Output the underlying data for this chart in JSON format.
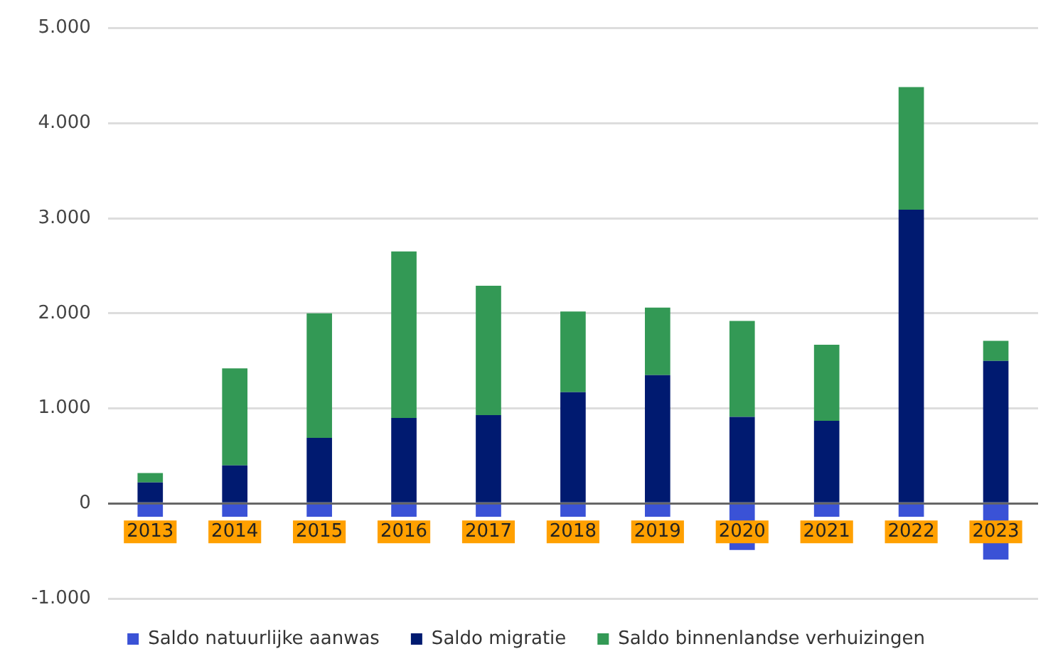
{
  "chart_data": {
    "type": "bar",
    "stacked": true,
    "categories": [
      "2013",
      "2014",
      "2015",
      "2016",
      "2017",
      "2018",
      "2019",
      "2020",
      "2021",
      "2022",
      "2023"
    ],
    "series": [
      {
        "name": "Saldo natuurlijke aanwas",
        "color": "#3a52d6",
        "values": [
          -140,
          -140,
          -140,
          -140,
          -140,
          -140,
          -140,
          -490,
          -140,
          -140,
          -590
        ]
      },
      {
        "name": "Saldo migratie",
        "color": "#001a70",
        "values": [
          220,
          400,
          690,
          900,
          930,
          1170,
          1350,
          910,
          870,
          3090,
          1500
        ]
      },
      {
        "name": "Saldo binnenlandse verhuizingen",
        "color": "#339955",
        "values": [
          100,
          1020,
          1310,
          1750,
          1360,
          850,
          710,
          1010,
          800,
          1290,
          210
        ]
      }
    ],
    "ylim": [
      -1000,
      5000
    ],
    "yticks": [
      {
        "value": -1000,
        "label": "-1.000"
      },
      {
        "value": 0,
        "label": "0"
      },
      {
        "value": 1000,
        "label": "1.000"
      },
      {
        "value": 2000,
        "label": "2.000"
      },
      {
        "value": 3000,
        "label": "3.000"
      },
      {
        "value": 4000,
        "label": "4.000"
      },
      {
        "value": 5000,
        "label": "5.000"
      }
    ],
    "grid": "y",
    "legend": "bottom"
  }
}
